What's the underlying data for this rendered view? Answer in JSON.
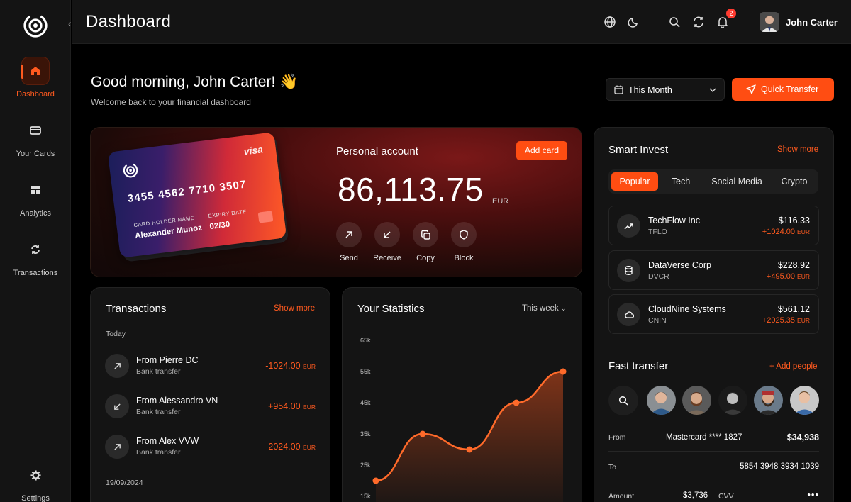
{
  "sidebar": {
    "items": [
      {
        "label": "Dashboard",
        "icon": "home-icon",
        "active": true
      },
      {
        "label": "Your Cards",
        "icon": "card-icon"
      },
      {
        "label": "Analytics",
        "icon": "analytics-icon"
      },
      {
        "label": "Transactions",
        "icon": "transactions-icon"
      },
      {
        "label": "Settings",
        "icon": "gear-icon"
      }
    ]
  },
  "header": {
    "title": "Dashboard",
    "notifications": "2",
    "user_name": "John Carter"
  },
  "greeting": {
    "title": "Good morning, John Carter! 👋",
    "subtitle": "Welcome back to your financial dashboard"
  },
  "period_select": "This Month",
  "quick_transfer_label": "Quick Transfer",
  "card": {
    "brand": "visa",
    "number": "3455 4562 7710 3507",
    "holder_label": "CARD HOLDER NAME",
    "holder": "Alexander Munoz",
    "expiry_label": "EXPIRY DATE",
    "expiry": "02/30"
  },
  "account": {
    "label": "Personal account",
    "add_card": "Add card",
    "balance": "86,113.75",
    "currency": "EUR",
    "actions": [
      "Send",
      "Receive",
      "Copy",
      "Block"
    ]
  },
  "smart_invest": {
    "title": "Smart Invest",
    "show_more": "Show more",
    "tabs": [
      "Popular",
      "Tech",
      "Social Media",
      "Crypto"
    ],
    "active_tab": "Popular",
    "stocks": [
      {
        "name": "TechFlow Inc",
        "ticker": "TFLO",
        "price": "$116.33",
        "change": "+1024.00",
        "currency": "EUR",
        "icon": "trend-up-icon"
      },
      {
        "name": "DataVerse Corp",
        "ticker": "DVCR",
        "price": "$228.92",
        "change": "+495.00",
        "currency": "EUR",
        "icon": "database-icon"
      },
      {
        "name": "CloudNine Systems",
        "ticker": "CNIN",
        "price": "$561.12",
        "change": "+2025.35",
        "currency": "EUR",
        "icon": "cloud-icon"
      }
    ]
  },
  "fast_transfer": {
    "title": "Fast transfer",
    "add_people": "+ Add people",
    "from_label": "From",
    "from_card": "Mastercard **** 1827",
    "from_amount": "$34,938",
    "to_label": "To",
    "to_account": "5854 3948 3934 1039",
    "amount_label": "Amount",
    "amount": "$3,736",
    "cvv_label": "CVV",
    "cvv": "•••"
  },
  "transactions": {
    "title": "Transactions",
    "show_more": "Show more",
    "groups": [
      {
        "day": "Today",
        "items": [
          {
            "name": "From Pierre DC",
            "type": "Bank transfer",
            "amount": "-1024.00",
            "currency": "EUR",
            "direction": "out"
          },
          {
            "name": "From Alessandro VN",
            "type": "Bank transfer",
            "amount": "+954.00",
            "currency": "EUR",
            "direction": "in"
          },
          {
            "name": "From Alex VVW",
            "type": "Bank transfer",
            "amount": "-2024.00",
            "currency": "EUR",
            "direction": "out"
          }
        ]
      },
      {
        "day": "19/09/2024",
        "items": []
      }
    ]
  },
  "statistics": {
    "title": "Your Statistics",
    "period": "This week"
  },
  "chart_data": {
    "type": "area",
    "y_ticks": [
      "65k",
      "55k",
      "45k",
      "35k",
      "25k",
      "15k"
    ],
    "ylim": [
      15000,
      65000
    ],
    "x": [
      0,
      1,
      2,
      3,
      4
    ],
    "values": [
      20000,
      35000,
      30000,
      45000,
      55000
    ],
    "color": "#ff6a2a"
  },
  "colors": {
    "accent": "#ff4d12",
    "background": "#000000",
    "panel": "#141414"
  }
}
